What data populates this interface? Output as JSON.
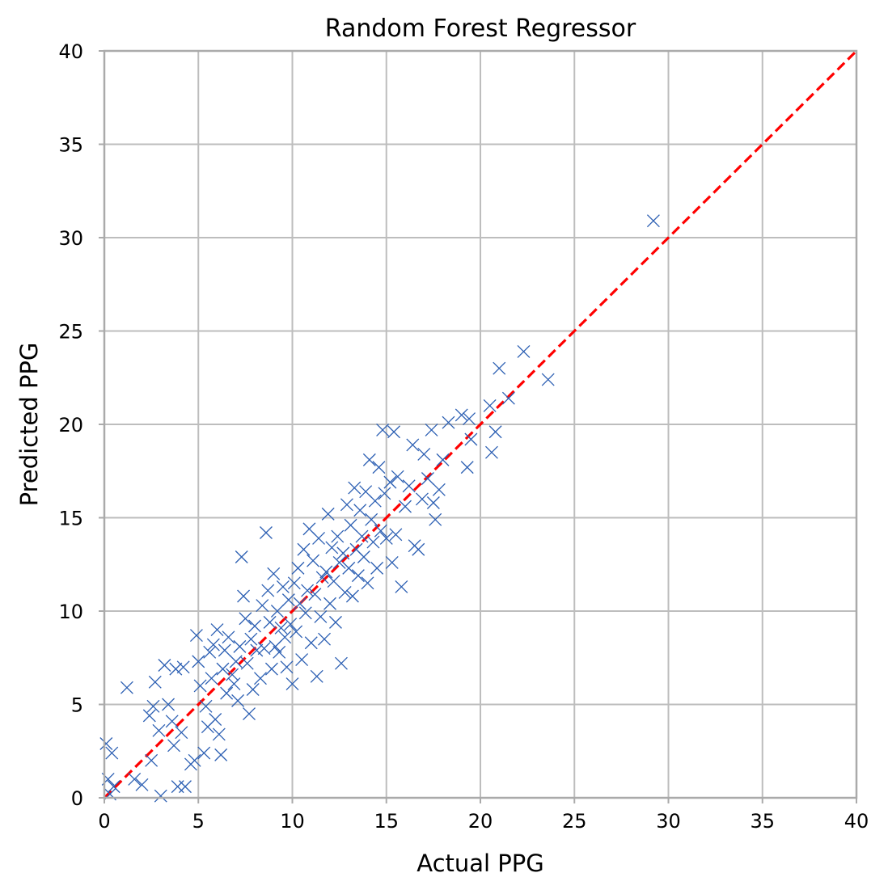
{
  "chart_data": {
    "type": "scatter",
    "title": "Random Forest Regressor",
    "xlabel": "Actual PPG",
    "ylabel": "Predicted PPG",
    "xlim": [
      0,
      40
    ],
    "ylim": [
      0,
      40
    ],
    "xticks": [
      0,
      5,
      10,
      15,
      20,
      25,
      30,
      35,
      40
    ],
    "yticks": [
      0,
      5,
      10,
      15,
      20,
      25,
      30,
      35,
      40
    ],
    "grid": true,
    "marker": "x",
    "colors": {
      "points": "#2c5fb3",
      "reference_line": "#ff0000"
    },
    "reference_line": {
      "style": "dashed",
      "from": [
        0,
        0
      ],
      "to": [
        40,
        40
      ]
    },
    "series": [
      {
        "points": [
          [
            0.1,
            2.9
          ],
          [
            0.4,
            2.4
          ],
          [
            0.2,
            1.0
          ],
          [
            0.5,
            0.6
          ],
          [
            0.3,
            0.2
          ],
          [
            1.2,
            5.9
          ],
          [
            1.6,
            1.0
          ],
          [
            2.0,
            0.7
          ],
          [
            2.4,
            4.4
          ],
          [
            2.6,
            4.9
          ],
          [
            2.7,
            6.2
          ],
          [
            2.5,
            2.0
          ],
          [
            2.9,
            3.6
          ],
          [
            3.0,
            0.1
          ],
          [
            3.2,
            7.1
          ],
          [
            3.4,
            5.0
          ],
          [
            3.6,
            4.1
          ],
          [
            3.7,
            2.8
          ],
          [
            3.8,
            6.9
          ],
          [
            3.9,
            0.6
          ],
          [
            4.1,
            3.5
          ],
          [
            4.2,
            7.0
          ],
          [
            4.3,
            0.6
          ],
          [
            4.6,
            1.8
          ],
          [
            4.8,
            2.0
          ],
          [
            4.9,
            8.7
          ],
          [
            5.0,
            7.3
          ],
          [
            5.1,
            6.0
          ],
          [
            5.3,
            2.4
          ],
          [
            5.4,
            4.9
          ],
          [
            5.5,
            3.8
          ],
          [
            5.6,
            7.8
          ],
          [
            5.7,
            6.4
          ],
          [
            5.8,
            8.2
          ],
          [
            5.9,
            4.2
          ],
          [
            6.0,
            9.0
          ],
          [
            6.1,
            3.4
          ],
          [
            6.2,
            2.3
          ],
          [
            6.3,
            6.9
          ],
          [
            6.4,
            7.9
          ],
          [
            6.5,
            5.6
          ],
          [
            6.6,
            8.6
          ],
          [
            6.8,
            6.6
          ],
          [
            6.9,
            6.1
          ],
          [
            7.0,
            7.3
          ],
          [
            7.1,
            5.2
          ],
          [
            7.2,
            8.1
          ],
          [
            7.3,
            12.9
          ],
          [
            7.4,
            10.8
          ],
          [
            7.5,
            9.6
          ],
          [
            7.6,
            7.2
          ],
          [
            7.7,
            4.5
          ],
          [
            7.8,
            8.5
          ],
          [
            7.9,
            5.8
          ],
          [
            8.0,
            9.2
          ],
          [
            8.1,
            7.9
          ],
          [
            8.3,
            6.4
          ],
          [
            8.4,
            10.3
          ],
          [
            8.5,
            8.0
          ],
          [
            8.6,
            14.2
          ],
          [
            8.7,
            11.1
          ],
          [
            8.8,
            9.4
          ],
          [
            8.9,
            6.9
          ],
          [
            9.0,
            12.0
          ],
          [
            9.1,
            8.1
          ],
          [
            9.2,
            10.0
          ],
          [
            9.3,
            7.8
          ],
          [
            9.4,
            9.1
          ],
          [
            9.5,
            11.3
          ],
          [
            9.6,
            8.6
          ],
          [
            9.7,
            7.0
          ],
          [
            9.8,
            10.6
          ],
          [
            9.9,
            9.3
          ],
          [
            10.0,
            6.1
          ],
          [
            10.1,
            11.5
          ],
          [
            10.2,
            8.9
          ],
          [
            10.3,
            12.3
          ],
          [
            10.4,
            10.4
          ],
          [
            10.5,
            7.4
          ],
          [
            10.6,
            13.3
          ],
          [
            10.7,
            9.9
          ],
          [
            10.8,
            11.1
          ],
          [
            10.9,
            14.4
          ],
          [
            11.0,
            8.3
          ],
          [
            11.1,
            12.7
          ],
          [
            11.2,
            10.9
          ],
          [
            11.3,
            6.5
          ],
          [
            11.4,
            13.9
          ],
          [
            11.5,
            9.7
          ],
          [
            11.6,
            11.8
          ],
          [
            11.7,
            8.5
          ],
          [
            11.8,
            12.1
          ],
          [
            11.9,
            15.2
          ],
          [
            12.0,
            10.4
          ],
          [
            12.1,
            13.4
          ],
          [
            12.2,
            11.6
          ],
          [
            12.3,
            9.4
          ],
          [
            12.4,
            14.0
          ],
          [
            12.5,
            12.6
          ],
          [
            12.6,
            7.2
          ],
          [
            12.7,
            13.1
          ],
          [
            12.8,
            11.0
          ],
          [
            12.9,
            15.7
          ],
          [
            13.0,
            12.3
          ],
          [
            13.1,
            14.6
          ],
          [
            13.2,
            10.8
          ],
          [
            13.3,
            16.6
          ],
          [
            13.4,
            13.3
          ],
          [
            13.5,
            11.9
          ],
          [
            13.6,
            15.4
          ],
          [
            13.7,
            14.0
          ],
          [
            13.8,
            12.9
          ],
          [
            13.9,
            16.4
          ],
          [
            14.0,
            11.5
          ],
          [
            14.1,
            18.1
          ],
          [
            14.2,
            14.9
          ],
          [
            14.3,
            13.7
          ],
          [
            14.4,
            15.9
          ],
          [
            14.5,
            12.3
          ],
          [
            14.6,
            17.7
          ],
          [
            14.7,
            14.3
          ],
          [
            14.8,
            19.7
          ],
          [
            14.9,
            16.3
          ],
          [
            15.0,
            13.9
          ],
          [
            15.2,
            16.9
          ],
          [
            15.3,
            12.6
          ],
          [
            15.4,
            19.6
          ],
          [
            15.5,
            14.1
          ],
          [
            15.6,
            17.2
          ],
          [
            15.8,
            11.3
          ],
          [
            16.0,
            15.6
          ],
          [
            16.2,
            16.7
          ],
          [
            16.4,
            18.9
          ],
          [
            16.5,
            13.5
          ],
          [
            16.7,
            13.3
          ],
          [
            16.9,
            16.0
          ],
          [
            17.0,
            18.4
          ],
          [
            17.2,
            17.1
          ],
          [
            17.4,
            19.7
          ],
          [
            17.5,
            15.8
          ],
          [
            17.6,
            14.9
          ],
          [
            17.8,
            16.5
          ],
          [
            18.0,
            18.1
          ],
          [
            18.3,
            20.1
          ],
          [
            19.0,
            20.5
          ],
          [
            19.3,
            17.7
          ],
          [
            19.4,
            20.3
          ],
          [
            19.5,
            19.2
          ],
          [
            20.5,
            21.0
          ],
          [
            20.6,
            18.5
          ],
          [
            20.8,
            19.6
          ],
          [
            21.0,
            23.0
          ],
          [
            21.5,
            21.4
          ],
          [
            22.3,
            23.9
          ],
          [
            23.6,
            22.4
          ],
          [
            29.2,
            30.9
          ]
        ]
      }
    ]
  }
}
